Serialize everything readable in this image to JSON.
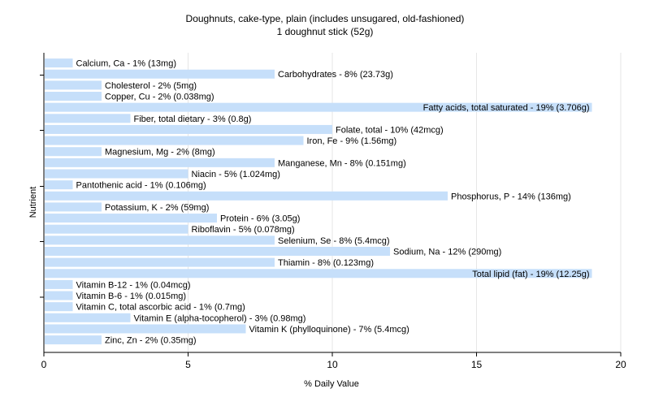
{
  "chart_data": {
    "type": "bar",
    "orientation": "horizontal",
    "title": "Doughnuts, cake-type, plain (includes unsugared, old-fashioned)",
    "subtitle": "1 doughnut stick (52g)",
    "xlabel": "% Daily Value",
    "ylabel": "Nutrient",
    "xlim": [
      0,
      20
    ],
    "xticks": [
      "0",
      "5",
      "10",
      "15",
      "20"
    ],
    "grid": "vertical",
    "bar_color": "#c6dffa",
    "categories": [
      "Calcium, Ca",
      "Carbohydrates",
      "Cholesterol",
      "Copper, Cu",
      "Fatty acids, total saturated",
      "Fiber, total dietary",
      "Folate, total",
      "Iron, Fe",
      "Magnesium, Mg",
      "Manganese, Mn",
      "Niacin",
      "Pantothenic acid",
      "Phosphorus, P",
      "Potassium, K",
      "Protein",
      "Riboflavin",
      "Selenium, Se",
      "Sodium, Na",
      "Thiamin",
      "Total lipid (fat)",
      "Vitamin B-12",
      "Vitamin B-6",
      "Vitamin C, total ascorbic acid",
      "Vitamin E (alpha-tocopherol)",
      "Vitamin K (phylloquinone)",
      "Zinc, Zn"
    ],
    "values": [
      1,
      8,
      2,
      2,
      19,
      3,
      10,
      9,
      2,
      8,
      5,
      1,
      14,
      2,
      6,
      5,
      8,
      12,
      8,
      19,
      1,
      1,
      1,
      3,
      7,
      2
    ],
    "labels": [
      "Calcium, Ca - 1% (13mg)",
      "Carbohydrates - 8% (23.73g)",
      "Cholesterol - 2% (5mg)",
      "Copper, Cu - 2% (0.038mg)",
      "Fatty acids, total saturated - 19% (3.706g)",
      "Fiber, total dietary - 3% (0.8g)",
      "Folate, total - 10% (42mcg)",
      "Iron, Fe - 9% (1.56mg)",
      "Magnesium, Mg - 2% (8mg)",
      "Manganese, Mn - 8% (0.151mg)",
      "Niacin - 5% (1.024mg)",
      "Pantothenic acid - 1% (0.106mg)",
      "Phosphorus, P - 14% (136mg)",
      "Potassium, K - 2% (59mg)",
      "Protein - 6% (3.05g)",
      "Riboflavin - 5% (0.078mg)",
      "Selenium, Se - 8% (5.4mcg)",
      "Sodium, Na - 12% (290mg)",
      "Thiamin - 8% (0.123mg)",
      "Total lipid (fat) - 19% (12.25g)",
      "Vitamin B-12 - 1% (0.04mcg)",
      "Vitamin B-6 - 1% (0.015mg)",
      "Vitamin C, total ascorbic acid - 1% (0.7mg)",
      "Vitamin E (alpha-tocopherol) - 3% (0.98mg)",
      "Vitamin K (phylloquinone) - 7% (5.4mcg)",
      "Zinc, Zn - 2% (0.35mg)"
    ]
  }
}
